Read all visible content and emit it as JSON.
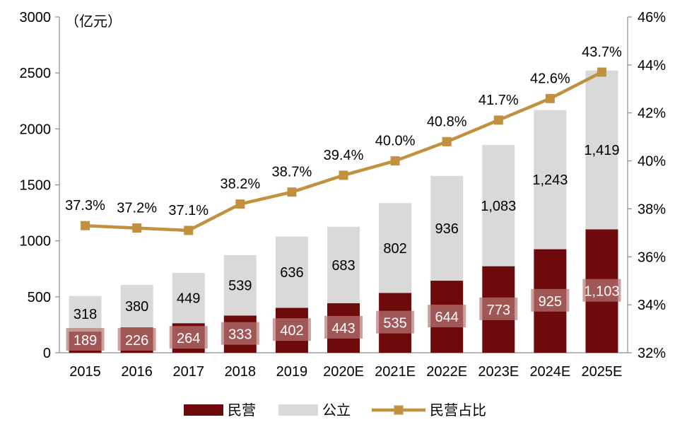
{
  "chart_data": {
    "type": "bar",
    "stacked": true,
    "unit_label": "（亿元）",
    "categories": [
      "2015",
      "2016",
      "2017",
      "2018",
      "2019",
      "2020E",
      "2021E",
      "2022E",
      "2023E",
      "2024E",
      "2025E"
    ],
    "series": [
      {
        "name": "民营",
        "type": "bar",
        "axis": "left",
        "color": "#6E0A0B",
        "values": [
          189,
          226,
          264,
          333,
          402,
          443,
          535,
          644,
          773,
          925,
          1103
        ],
        "labels": [
          "189",
          "226",
          "264",
          "333",
          "402",
          "443",
          "535",
          "644",
          "773",
          "925",
          "1,103"
        ]
      },
      {
        "name": "公立",
        "type": "bar",
        "axis": "left",
        "color": "#D9D9D9",
        "values": [
          318,
          380,
          449,
          539,
          636,
          683,
          802,
          936,
          1083,
          1243,
          1419
        ],
        "labels": [
          "318",
          "380",
          "449",
          "539",
          "636",
          "683",
          "802",
          "936",
          "1,083",
          "1,243",
          "1,419"
        ]
      },
      {
        "name": "民营占比",
        "type": "line",
        "axis": "right",
        "color": "#C1913F",
        "values": [
          37.3,
          37.2,
          37.1,
          38.2,
          38.7,
          39.4,
          40.0,
          40.8,
          41.7,
          42.6,
          43.7
        ],
        "labels": [
          "37.3%",
          "37.2%",
          "37.1%",
          "38.2%",
          "38.7%",
          "39.4%",
          "40.0%",
          "40.8%",
          "41.7%",
          "42.6%",
          "43.7%"
        ]
      }
    ],
    "y_left": {
      "min": 0,
      "max": 3000,
      "ticks": [
        "0",
        "500",
        "1000",
        "1500",
        "2000",
        "2500",
        "3000"
      ]
    },
    "y_right": {
      "min": 32,
      "max": 46,
      "ticks": [
        "32%",
        "34%",
        "36%",
        "38%",
        "40%",
        "42%",
        "44%",
        "46%"
      ]
    },
    "legend": {
      "position": "bottom",
      "items": [
        "民营",
        "公立",
        "民营占比"
      ]
    },
    "grid": false
  }
}
